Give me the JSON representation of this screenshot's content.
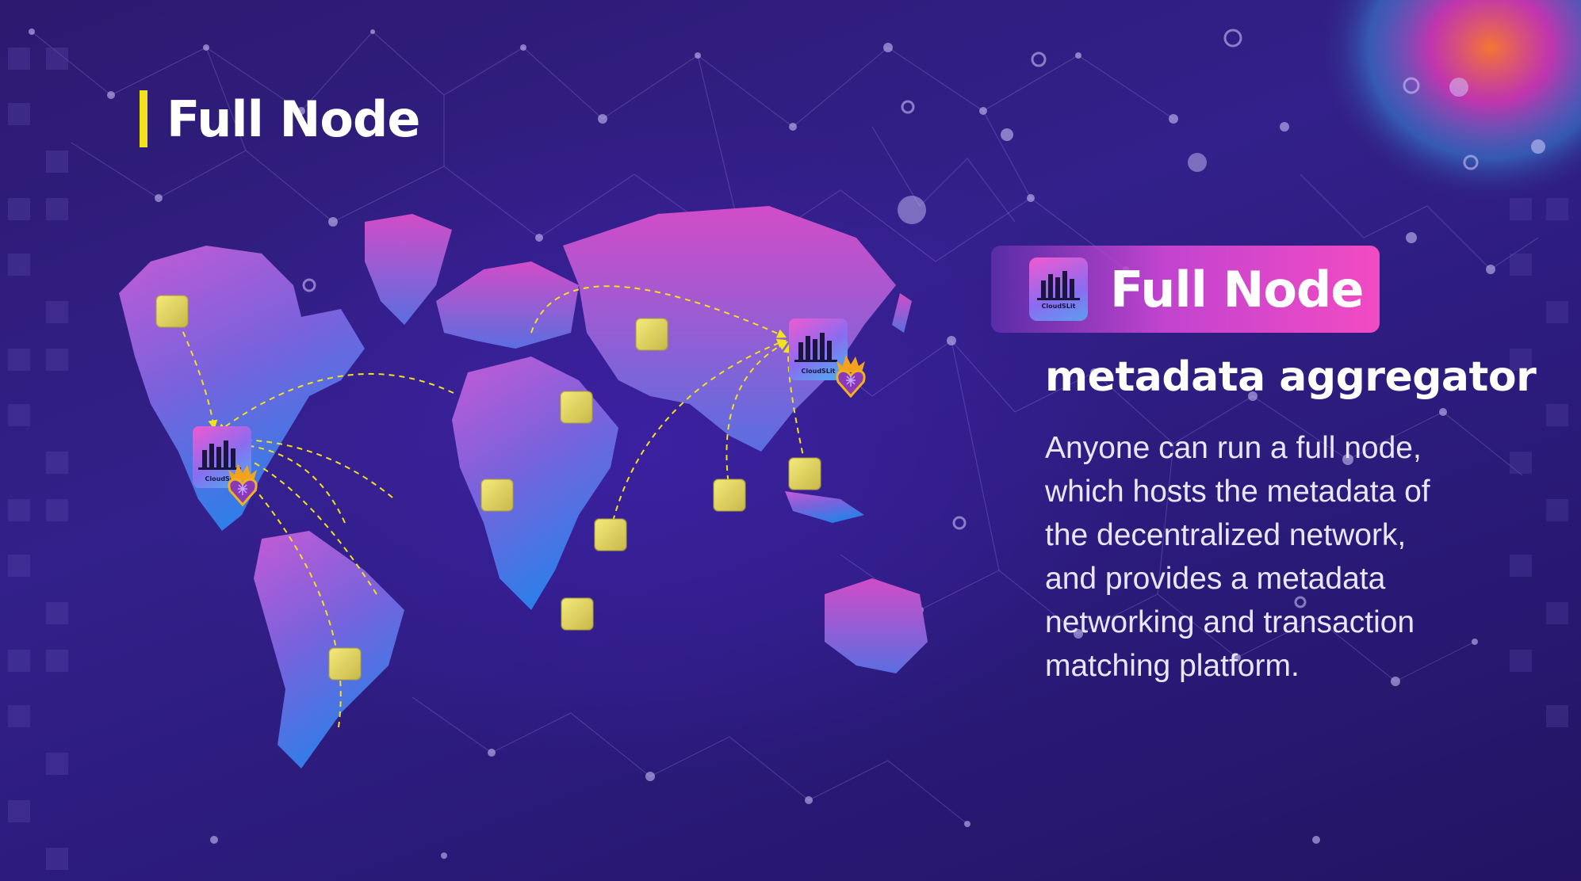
{
  "colors": {
    "background": "#2c1a70",
    "accent_yellow": "#f2e21c",
    "pill_pink": "#f24bc3",
    "text": "#ffffff"
  },
  "header": {
    "title": "Full Node"
  },
  "callout": {
    "badge_title": "Full Node",
    "logo_caption": "CloudSLit",
    "subtitle": "metadata aggregator",
    "description": "Anyone can run a full node,\nwhich hosts the metadata of\nthe decentralized network,\nand provides a metadata\nnetworking and transaction\nmatching platform."
  },
  "map": {
    "hub_logo_caption": "CloudSLit",
    "icons": [
      "world-map",
      "server-logo-icon",
      "flame-heart-icon",
      "node-square-icon"
    ]
  }
}
